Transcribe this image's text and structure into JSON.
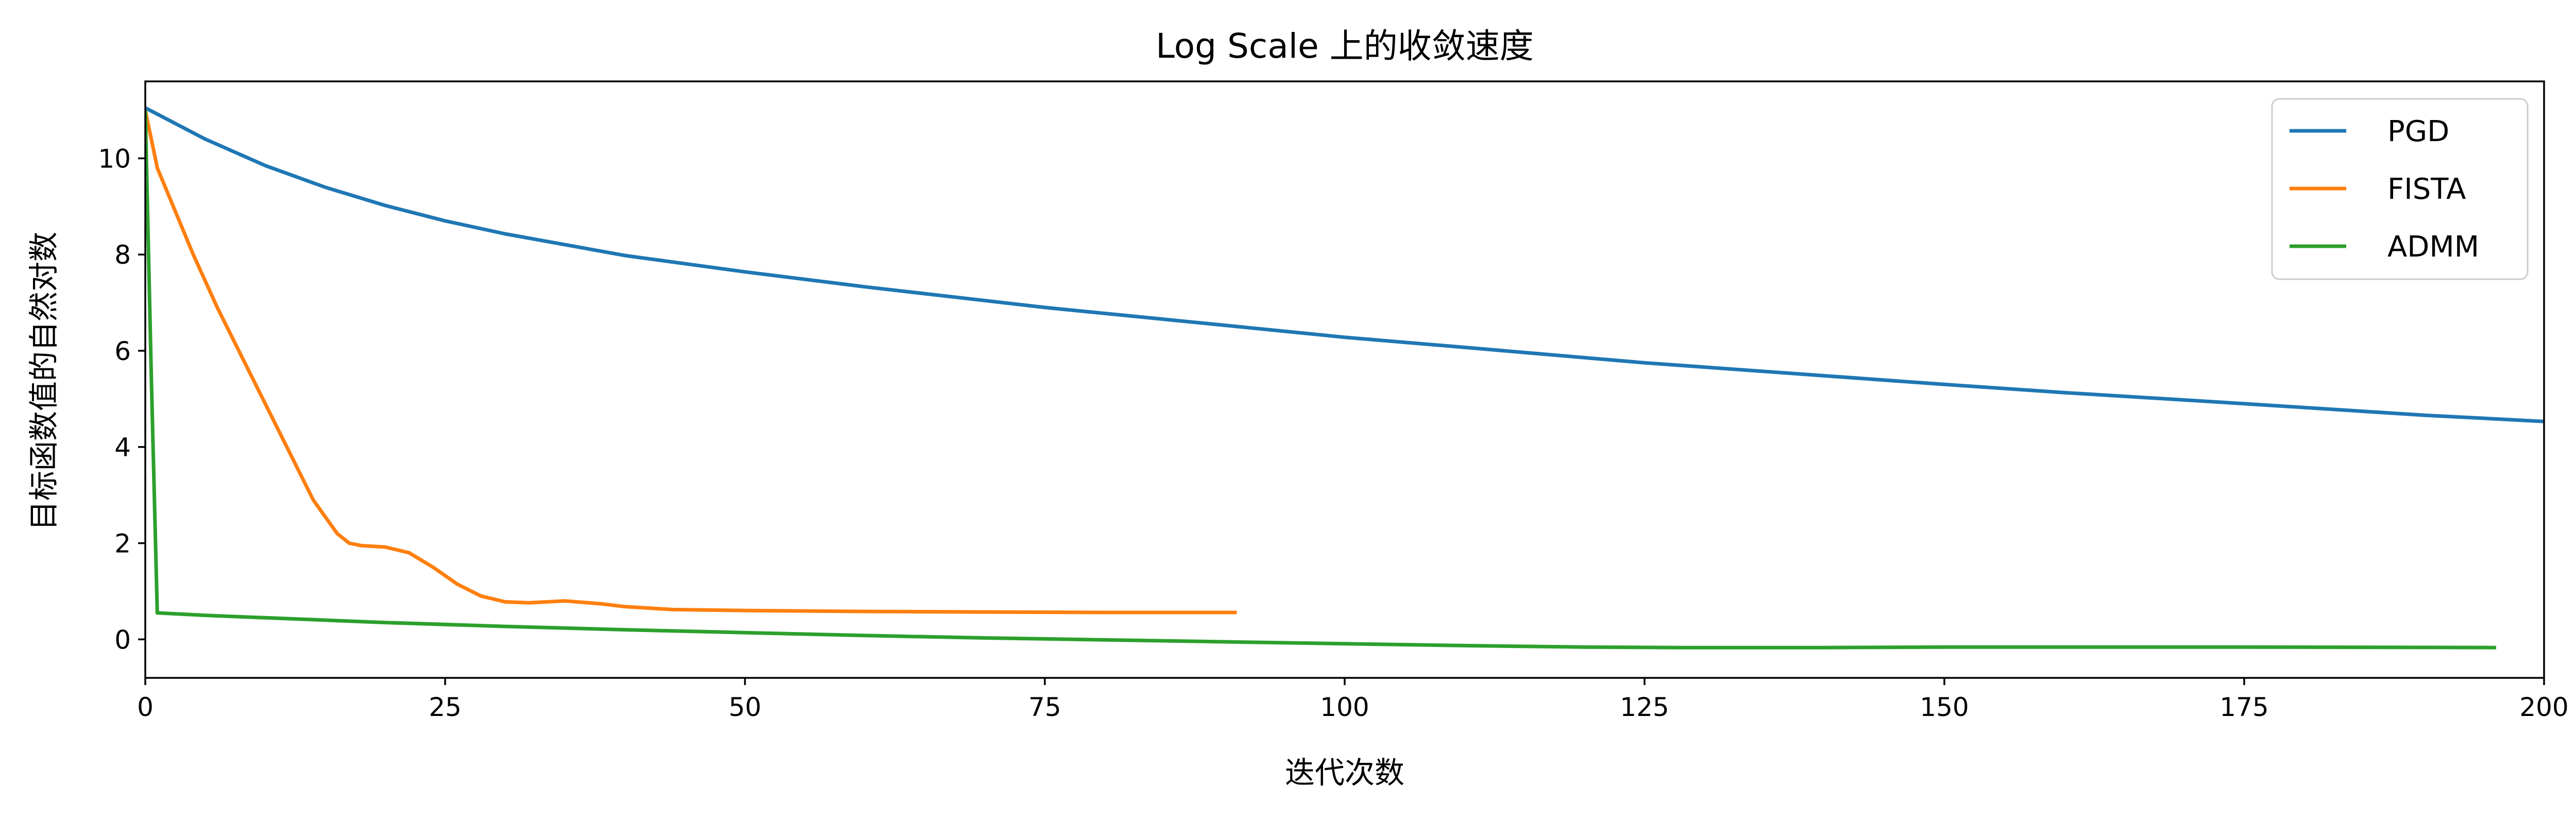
{
  "chart_data": {
    "type": "line",
    "title": "Log Scale 上的收敛速度",
    "xlabel": "迭代次数",
    "ylabel": "目标函数值的自然对数",
    "xlim": [
      0,
      200
    ],
    "ylim": [
      -0.8,
      11.6
    ],
    "xticks": [
      0,
      25,
      50,
      75,
      100,
      125,
      150,
      175,
      200
    ],
    "yticks": [
      0,
      2,
      4,
      6,
      8,
      10
    ],
    "grid": false,
    "legend": {
      "position": "top-right"
    },
    "series": [
      {
        "name": "PGD",
        "color": "#1f77b4",
        "x": [
          0,
          5,
          10,
          15,
          20,
          25,
          30,
          40,
          50,
          60,
          75,
          90,
          100,
          110,
          125,
          140,
          150,
          160,
          175,
          190,
          200
        ],
        "y": [
          11.05,
          10.4,
          9.85,
          9.4,
          9.02,
          8.7,
          8.43,
          7.98,
          7.64,
          7.33,
          6.9,
          6.53,
          6.28,
          6.07,
          5.75,
          5.48,
          5.3,
          5.13,
          4.9,
          4.66,
          4.53
        ]
      },
      {
        "name": "FISTA",
        "color": "#ff7f0e",
        "x": [
          0,
          1,
          2,
          4,
          6,
          8,
          10,
          12,
          14,
          16,
          17,
          18,
          20,
          22,
          24,
          26,
          28,
          30,
          32,
          35,
          38,
          40,
          44,
          50,
          60,
          70,
          80,
          91
        ],
        "y": [
          11.0,
          9.8,
          9.2,
          8.0,
          6.9,
          5.9,
          4.9,
          3.9,
          2.9,
          2.2,
          2.0,
          1.95,
          1.92,
          1.8,
          1.5,
          1.15,
          0.9,
          0.78,
          0.76,
          0.8,
          0.74,
          0.68,
          0.62,
          0.6,
          0.58,
          0.57,
          0.56,
          0.56
        ]
      },
      {
        "name": "ADMM",
        "color": "#2ca02c",
        "x": [
          0,
          0.5,
          1,
          5,
          10,
          20,
          30,
          40,
          50,
          60,
          70,
          80,
          90,
          100,
          110,
          120,
          128,
          140,
          150,
          175,
          196
        ],
        "y": [
          11.0,
          5.5,
          0.55,
          0.5,
          0.45,
          0.35,
          0.27,
          0.2,
          0.14,
          0.08,
          0.03,
          -0.01,
          -0.05,
          -0.09,
          -0.13,
          -0.16,
          -0.17,
          -0.17,
          -0.16,
          -0.16,
          -0.17
        ]
      }
    ]
  }
}
